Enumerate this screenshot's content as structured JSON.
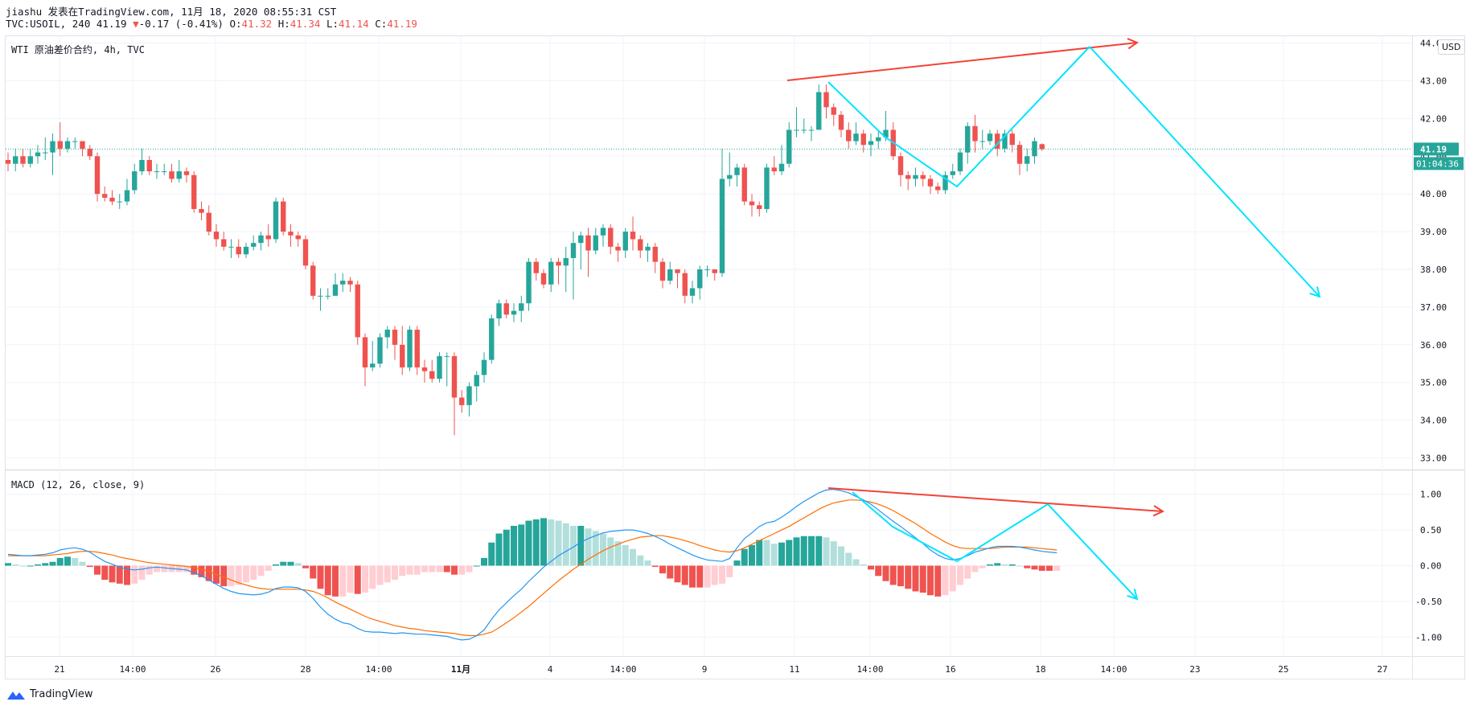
{
  "header": {
    "author_line": "jiashu 发表在TradingView.com, 11月 18, 2020 08:55:31 CST",
    "symbol": "TVC:USOIL, 240",
    "last": "41.19",
    "change_arrow": "▼",
    "change": "-0.17 (-0.41%)",
    "o_label": "O:",
    "o_val": "41.32",
    "h_label": "H:",
    "h_val": "41.34",
    "l_label": "L:",
    "l_val": "41.14",
    "c_label": "C:",
    "c_val": "41.19"
  },
  "main_pane": {
    "label": "WTI 原油差价合约, 4h, TVC",
    "currency": "USD",
    "price_tag": "41.19",
    "countdown": "01:04:36"
  },
  "macd_pane": {
    "label": "MACD (12, 26, close, 9)"
  },
  "footer": {
    "brand": "TradingView"
  },
  "colors": {
    "up": "#26a69a",
    "down": "#ef5350",
    "macd": "#2196f3",
    "signal": "#ff6d00",
    "drawing_red": "#f44336",
    "drawing_cyan": "#00e5ff",
    "hist_up_strong": "#26a69a",
    "hist_up_weak": "#b2dfdb",
    "hist_dn_strong": "#ef5350",
    "hist_dn_weak": "#ffcdd2"
  },
  "chart_data": [
    {
      "type": "candlestick",
      "title": "WTI 原油差价合约, 4h, TVC",
      "ylim": [
        32.7,
        44.0
      ],
      "y_ticks": [
        "33.00",
        "34.00",
        "35.00",
        "36.00",
        "37.00",
        "38.00",
        "39.00",
        "40.00",
        "41.00",
        "42.00",
        "43.00",
        "44.00"
      ],
      "x_ticks": [
        "21",
        "14:00",
        "26",
        "28",
        "14:00",
        "11月",
        "4",
        "14:00",
        "9",
        "11",
        "14:00",
        "16",
        "18",
        "14:00",
        "23",
        "25",
        "27"
      ],
      "current_price": 41.19,
      "candles": [
        [
          40.9,
          40.8,
          41.1,
          40.6
        ],
        [
          40.8,
          41.0,
          41.2,
          40.6
        ],
        [
          41.0,
          40.8,
          41.2,
          40.7
        ],
        [
          40.8,
          41.0,
          41.2,
          40.7
        ],
        [
          41.0,
          41.1,
          41.3,
          40.8
        ],
        [
          41.1,
          41.1,
          41.5,
          40.9
        ],
        [
          41.1,
          41.4,
          41.6,
          40.5
        ],
        [
          41.4,
          41.2,
          41.9,
          41.0
        ],
        [
          41.2,
          41.4,
          41.5,
          41.1
        ],
        [
          41.4,
          41.4,
          41.5,
          41.2
        ],
        [
          41.4,
          41.2,
          41.4,
          41.0
        ],
        [
          41.2,
          41.0,
          41.3,
          40.9
        ],
        [
          41.0,
          40.0,
          41.1,
          39.8
        ],
        [
          40.0,
          39.9,
          40.2,
          39.8
        ],
        [
          39.9,
          39.8,
          40.1,
          39.7
        ],
        [
          39.8,
          39.8,
          40.0,
          39.6
        ],
        [
          39.8,
          40.1,
          40.4,
          39.7
        ],
        [
          40.1,
          40.6,
          40.8,
          40.0
        ],
        [
          40.6,
          40.9,
          41.2,
          40.5
        ],
        [
          40.9,
          40.6,
          41.0,
          40.5
        ],
        [
          40.6,
          40.6,
          40.8,
          40.4
        ],
        [
          40.6,
          40.6,
          40.8,
          40.5
        ],
        [
          40.6,
          40.4,
          40.8,
          40.3
        ],
        [
          40.4,
          40.6,
          40.9,
          40.3
        ],
        [
          40.6,
          40.5,
          40.7,
          40.3
        ],
        [
          40.5,
          39.6,
          40.6,
          39.5
        ],
        [
          39.6,
          39.5,
          39.8,
          39.3
        ],
        [
          39.5,
          39.0,
          39.7,
          38.9
        ],
        [
          39.0,
          38.8,
          39.2,
          38.6
        ],
        [
          38.8,
          38.6,
          39.0,
          38.5
        ],
        [
          38.6,
          38.6,
          38.8,
          38.3
        ],
        [
          38.6,
          38.4,
          38.8,
          38.3
        ],
        [
          38.4,
          38.6,
          38.7,
          38.3
        ],
        [
          38.6,
          38.7,
          38.9,
          38.5
        ],
        [
          38.7,
          38.9,
          39.0,
          38.5
        ],
        [
          38.9,
          38.8,
          39.2,
          38.6
        ],
        [
          38.8,
          39.8,
          39.9,
          38.7
        ],
        [
          39.8,
          39.0,
          39.9,
          38.9
        ],
        [
          39.0,
          38.9,
          39.2,
          38.6
        ],
        [
          38.9,
          38.8,
          39.0,
          38.6
        ],
        [
          38.8,
          38.1,
          38.9,
          38.0
        ],
        [
          38.1,
          37.3,
          38.2,
          37.2
        ],
        [
          37.3,
          37.3,
          37.5,
          36.9
        ],
        [
          37.3,
          37.3,
          37.5,
          37.2
        ],
        [
          37.3,
          37.6,
          37.9,
          37.3
        ],
        [
          37.6,
          37.7,
          37.9,
          37.4
        ],
        [
          37.7,
          37.6,
          37.8,
          37.4
        ],
        [
          37.6,
          36.2,
          37.7,
          36.0
        ],
        [
          36.2,
          35.4,
          36.3,
          34.9
        ],
        [
          35.4,
          35.5,
          36.1,
          35.3
        ],
        [
          35.5,
          36.2,
          36.3,
          35.4
        ],
        [
          36.2,
          36.4,
          36.5,
          35.9
        ],
        [
          36.4,
          36.0,
          36.5,
          35.6
        ],
        [
          36.0,
          35.4,
          36.5,
          35.2
        ],
        [
          35.4,
          36.4,
          36.5,
          35.3
        ],
        [
          36.4,
          35.4,
          36.5,
          35.2
        ],
        [
          35.4,
          35.3,
          35.6,
          35.0
        ],
        [
          35.3,
          35.1,
          35.6,
          35.0
        ],
        [
          35.1,
          35.7,
          35.8,
          35.0
        ],
        [
          35.7,
          35.7,
          35.8,
          34.9
        ],
        [
          35.7,
          34.6,
          35.8,
          33.6
        ],
        [
          34.6,
          34.4,
          34.8,
          34.2
        ],
        [
          34.4,
          34.9,
          35.0,
          34.1
        ],
        [
          34.9,
          35.2,
          35.3,
          34.5
        ],
        [
          35.2,
          35.6,
          35.8,
          35.0
        ],
        [
          35.6,
          36.7,
          36.8,
          35.5
        ],
        [
          36.7,
          37.1,
          37.2,
          36.5
        ],
        [
          37.1,
          36.8,
          37.2,
          36.7
        ],
        [
          36.8,
          36.9,
          37.1,
          36.6
        ],
        [
          36.9,
          37.1,
          37.3,
          36.6
        ],
        [
          37.1,
          38.2,
          38.3,
          36.9
        ],
        [
          38.2,
          37.9,
          38.3,
          37.7
        ],
        [
          37.9,
          37.6,
          38.0,
          37.5
        ],
        [
          37.6,
          38.2,
          38.3,
          37.4
        ],
        [
          38.2,
          38.1,
          38.3,
          37.6
        ],
        [
          38.1,
          38.3,
          38.6,
          37.4
        ],
        [
          38.3,
          38.7,
          39.0,
          37.2
        ],
        [
          38.7,
          38.9,
          39.0,
          38.0
        ],
        [
          38.9,
          38.5,
          39.1,
          37.8
        ],
        [
          38.5,
          38.9,
          39.1,
          38.4
        ],
        [
          38.9,
          39.1,
          39.2,
          38.6
        ],
        [
          39.1,
          38.6,
          39.2,
          38.4
        ],
        [
          38.6,
          38.5,
          38.7,
          38.2
        ],
        [
          38.5,
          39.0,
          39.1,
          38.3
        ],
        [
          39.0,
          38.8,
          39.4,
          38.5
        ],
        [
          38.8,
          38.5,
          38.9,
          38.3
        ],
        [
          38.5,
          38.6,
          38.7,
          38.2
        ],
        [
          38.6,
          38.2,
          38.7,
          37.9
        ],
        [
          38.2,
          37.7,
          38.3,
          37.5
        ],
        [
          37.7,
          38.0,
          38.2,
          37.6
        ],
        [
          38.0,
          37.9,
          38.0,
          37.5
        ],
        [
          37.9,
          37.3,
          38.0,
          37.1
        ],
        [
          37.3,
          37.5,
          37.7,
          37.1
        ],
        [
          37.5,
          38.0,
          38.1,
          37.2
        ],
        [
          38.0,
          38.0,
          38.1,
          37.8
        ],
        [
          38.0,
          37.9,
          38.0,
          37.7
        ],
        [
          37.9,
          40.4,
          41.2,
          37.8
        ],
        [
          40.4,
          40.5,
          41.1,
          40.2
        ],
        [
          40.5,
          40.7,
          40.8,
          40.2
        ],
        [
          40.7,
          39.8,
          40.8,
          39.7
        ],
        [
          39.8,
          39.7,
          40.0,
          39.4
        ],
        [
          39.7,
          39.6,
          39.8,
          39.4
        ],
        [
          39.6,
          40.7,
          40.8,
          39.5
        ],
        [
          40.7,
          40.6,
          41.0,
          40.5
        ],
        [
          40.6,
          40.8,
          41.3,
          40.5
        ],
        [
          40.8,
          41.7,
          41.9,
          40.7
        ],
        [
          41.7,
          41.7,
          42.3,
          41.5
        ],
        [
          41.7,
          41.7,
          42.0,
          41.6
        ],
        [
          41.7,
          41.7,
          41.8,
          41.4
        ],
        [
          41.7,
          42.7,
          42.9,
          41.7
        ],
        [
          42.7,
          42.3,
          42.9,
          42.0
        ],
        [
          42.3,
          42.1,
          42.4,
          41.8
        ],
        [
          42.1,
          41.7,
          42.2,
          41.5
        ],
        [
          41.7,
          41.4,
          41.9,
          41.2
        ],
        [
          41.4,
          41.6,
          41.9,
          41.3
        ],
        [
          41.6,
          41.3,
          41.7,
          41.1
        ],
        [
          41.3,
          41.4,
          41.6,
          41.0
        ],
        [
          41.4,
          41.5,
          41.7,
          41.2
        ],
        [
          41.5,
          41.7,
          42.2,
          41.4
        ],
        [
          41.7,
          41.0,
          41.9,
          40.9
        ],
        [
          41.0,
          40.5,
          41.1,
          40.2
        ],
        [
          40.5,
          40.4,
          40.6,
          40.1
        ],
        [
          40.4,
          40.5,
          40.7,
          40.2
        ],
        [
          40.5,
          40.4,
          40.6,
          40.2
        ],
        [
          40.4,
          40.2,
          40.5,
          40.0
        ],
        [
          40.2,
          40.1,
          40.3,
          40.0
        ],
        [
          40.1,
          40.5,
          40.6,
          40.0
        ],
        [
          40.5,
          40.6,
          40.8,
          40.4
        ],
        [
          40.6,
          41.1,
          41.2,
          40.5
        ],
        [
          41.1,
          41.8,
          41.9,
          40.8
        ],
        [
          41.8,
          41.4,
          42.1,
          41.1
        ],
        [
          41.4,
          41.4,
          41.7,
          41.2
        ],
        [
          41.4,
          41.6,
          41.7,
          41.3
        ],
        [
          41.6,
          41.2,
          41.7,
          41.0
        ],
        [
          41.2,
          41.6,
          41.7,
          41.1
        ],
        [
          41.6,
          41.3,
          41.7,
          41.1
        ],
        [
          41.3,
          40.8,
          41.4,
          40.5
        ],
        [
          40.8,
          41.0,
          41.2,
          40.6
        ],
        [
          41.0,
          41.4,
          41.5,
          40.8
        ],
        [
          41.32,
          41.19,
          41.34,
          41.14
        ]
      ]
    },
    {
      "type": "line",
      "title": "MACD (12, 26, close, 9)",
      "ylim": [
        -1.2,
        1.25
      ],
      "y_ticks": [
        "1.00",
        "0.50",
        "0.00",
        "-0.50",
        "-1.00"
      ],
      "series": [
        {
          "name": "MACD",
          "values": [
            0.16,
            0.15,
            0.14,
            0.14,
            0.15,
            0.16,
            0.18,
            0.22,
            0.24,
            0.25,
            0.23,
            0.19,
            0.12,
            0.06,
            0.02,
            -0.02,
            -0.05,
            -0.06,
            -0.05,
            -0.03,
            -0.02,
            -0.03,
            -0.04,
            -0.05,
            -0.06,
            -0.1,
            -0.14,
            -0.2,
            -0.26,
            -0.32,
            -0.36,
            -0.39,
            -0.4,
            -0.41,
            -0.4,
            -0.37,
            -0.32,
            -0.3,
            -0.3,
            -0.31,
            -0.36,
            -0.46,
            -0.58,
            -0.68,
            -0.75,
            -0.8,
            -0.82,
            -0.88,
            -0.92,
            -0.93,
            -0.93,
            -0.94,
            -0.95,
            -0.94,
            -0.95,
            -0.96,
            -0.96,
            -0.97,
            -0.98,
            -0.99,
            -1.02,
            -1.04,
            -1.03,
            -0.98,
            -0.9,
            -0.75,
            -0.62,
            -0.52,
            -0.42,
            -0.33,
            -0.22,
            -0.12,
            -0.02,
            0.06,
            0.14,
            0.2,
            0.26,
            0.33,
            0.38,
            0.42,
            0.46,
            0.48,
            0.49,
            0.5,
            0.5,
            0.48,
            0.45,
            0.41,
            0.36,
            0.3,
            0.25,
            0.2,
            0.15,
            0.11,
            0.08,
            0.07,
            0.06,
            0.1,
            0.25,
            0.38,
            0.46,
            0.55,
            0.6,
            0.62,
            0.68,
            0.75,
            0.83,
            0.9,
            0.96,
            1.02,
            1.06,
            1.07,
            1.05,
            1.02,
            0.97,
            0.92,
            0.86,
            0.78,
            0.7,
            0.62,
            0.55,
            0.47,
            0.39,
            0.31,
            0.22,
            0.15,
            0.1,
            0.08,
            0.1,
            0.14,
            0.19,
            0.22,
            0.25,
            0.27,
            0.27,
            0.27,
            0.26,
            0.24,
            0.22,
            0.2,
            0.19,
            0.18
          ]
        },
        {
          "name": "Signal",
          "values": [
            0.14,
            0.14,
            0.14,
            0.14,
            0.14,
            0.14,
            0.15,
            0.16,
            0.17,
            0.19,
            0.2,
            0.2,
            0.19,
            0.17,
            0.15,
            0.12,
            0.1,
            0.08,
            0.06,
            0.04,
            0.03,
            0.02,
            0.01,
            0.0,
            -0.01,
            -0.03,
            -0.05,
            -0.08,
            -0.12,
            -0.16,
            -0.2,
            -0.24,
            -0.27,
            -0.3,
            -0.32,
            -0.33,
            -0.33,
            -0.33,
            -0.33,
            -0.33,
            -0.34,
            -0.36,
            -0.4,
            -0.45,
            -0.51,
            -0.56,
            -0.61,
            -0.66,
            -0.71,
            -0.75,
            -0.78,
            -0.81,
            -0.84,
            -0.86,
            -0.88,
            -0.89,
            -0.91,
            -0.92,
            -0.93,
            -0.94,
            -0.95,
            -0.97,
            -0.98,
            -0.98,
            -0.96,
            -0.93,
            -0.87,
            -0.8,
            -0.73,
            -0.65,
            -0.57,
            -0.48,
            -0.39,
            -0.3,
            -0.21,
            -0.13,
            -0.05,
            0.02,
            0.09,
            0.15,
            0.21,
            0.26,
            0.3,
            0.34,
            0.37,
            0.4,
            0.41,
            0.42,
            0.42,
            0.4,
            0.38,
            0.35,
            0.32,
            0.28,
            0.25,
            0.22,
            0.2,
            0.19,
            0.21,
            0.25,
            0.3,
            0.35,
            0.4,
            0.45,
            0.5,
            0.55,
            0.61,
            0.67,
            0.73,
            0.79,
            0.84,
            0.88,
            0.9,
            0.92,
            0.92,
            0.91,
            0.89,
            0.86,
            0.82,
            0.77,
            0.71,
            0.65,
            0.59,
            0.52,
            0.45,
            0.39,
            0.33,
            0.28,
            0.25,
            0.24,
            0.24,
            0.24,
            0.24,
            0.25,
            0.26,
            0.26,
            0.26,
            0.26,
            0.25,
            0.24,
            0.23,
            0.22
          ]
        }
      ]
    }
  ]
}
